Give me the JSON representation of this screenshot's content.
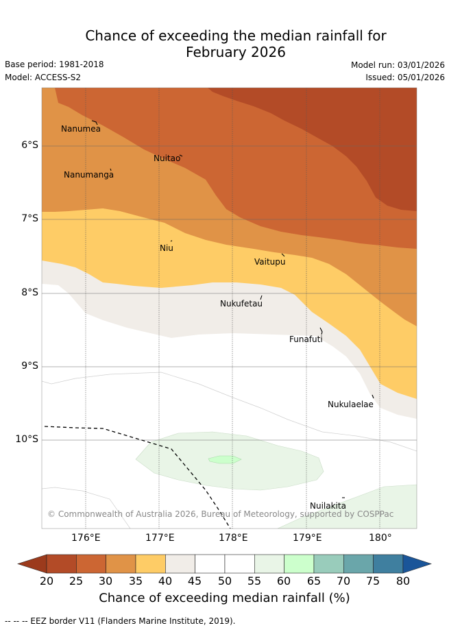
{
  "title_line1": "Chance of exceeding the median rainfall for",
  "title_line2": "February 2026",
  "meta": {
    "base_period": "Base period: 1981-2018",
    "model": "Model: ACCESS-S2",
    "model_run": "Model run: 03/01/2026",
    "issued": "Issued: 05/01/2026"
  },
  "map": {
    "lat_ticks": [
      "6°S",
      "7°S",
      "8°S",
      "9°S",
      "10°S"
    ],
    "lon_ticks": [
      "176°E",
      "177°E",
      "178°E",
      "179°E",
      "180°"
    ],
    "places": [
      "Nanumea",
      "Nuitao",
      "Nanumanga",
      "Niu",
      "Vaitupu",
      "Nukufetau",
      "Funafuti",
      "Nukulaelae",
      "Nuilakita"
    ],
    "copyright": "© Commonwealth of Australia 2026, Bureau of Meteorology, supported by COSPPac"
  },
  "colorbar": {
    "labels": [
      "20",
      "25",
      "30",
      "35",
      "40",
      "45",
      "50",
      "55",
      "60",
      "65",
      "70",
      "75",
      "80"
    ],
    "colors": [
      "#9c3a1c",
      "#b34b27",
      "#cc6633",
      "#e09347",
      "#fecc66",
      "#f1ede8",
      "#ffffff",
      "#ffffff",
      "#e9f5e7",
      "#ccffcc",
      "#99ccbb",
      "#6aa6aa",
      "#3f7f9f",
      "#1a5599"
    ],
    "title": "Chance of exceeding median rainfall (%)"
  },
  "footer": "--  --  -- EEZ border V11 (Flanders Marine Institute, 2019)."
}
